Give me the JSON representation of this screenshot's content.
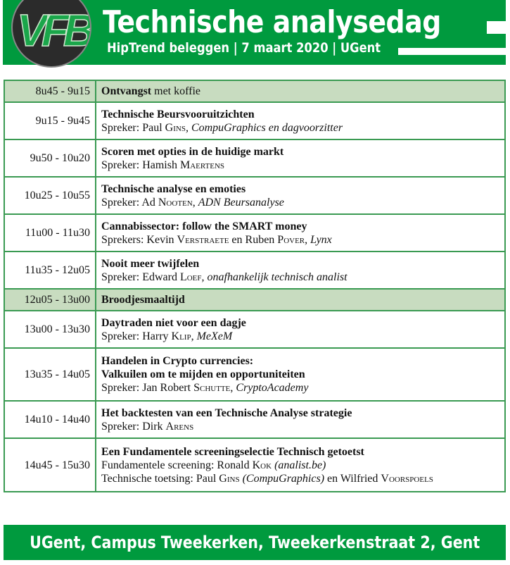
{
  "header": {
    "logo_text": "VFB",
    "title": "Technische analysedag",
    "subtitle": "HipTrend beleggen | 7 maart 2020 | UGent",
    "brand_color": "#009a3e"
  },
  "sessions": [
    {
      "time": "8u45 - 9u15",
      "highlight": true,
      "title": "Ontvangst",
      "title_suffix": " met koffie",
      "lines": []
    },
    {
      "time": "9u15 - 9u45",
      "title": "Technische Beursvooruitzichten",
      "lines": [
        [
          {
            "t": "Spreker: Paul "
          },
          {
            "t": "Gins",
            "s": "sc"
          },
          {
            "t": ", CompuGraphics en dagvoorzitter",
            "s": "it"
          }
        ]
      ]
    },
    {
      "time": "9u50 - 10u20",
      "title": "Scoren met opties in de huidige markt",
      "lines": [
        [
          {
            "t": "Spreker: Hamish "
          },
          {
            "t": "Maertens",
            "s": "sc"
          }
        ]
      ]
    },
    {
      "time": "10u25 - 10u55",
      "title": "Technische analyse en emoties",
      "lines": [
        [
          {
            "t": "Spreker: Ad "
          },
          {
            "t": "Nooten",
            "s": "sc"
          },
          {
            "t": ", "
          },
          {
            "t": "ADN Beursanalyse",
            "s": "it"
          }
        ]
      ]
    },
    {
      "time": "11u00 - 11u30",
      "title": "Cannabissector: follow the SMART money",
      "lines": [
        [
          {
            "t": "Sprekers: Kevin "
          },
          {
            "t": "Verstraete",
            "s": "sc"
          },
          {
            "t": " en Ruben "
          },
          {
            "t": "Pover",
            "s": "sc"
          },
          {
            "t": ", "
          },
          {
            "t": "Lynx",
            "s": "it"
          }
        ]
      ]
    },
    {
      "time": "11u35 - 12u05",
      "title": "Nooit meer twijfelen",
      "lines": [
        [
          {
            "t": "Spreker: Edward "
          },
          {
            "t": "Loef",
            "s": "sc"
          },
          {
            "t": ", "
          },
          {
            "t": "onafhankelijk technisch analist",
            "s": "it"
          }
        ]
      ]
    },
    {
      "time": "12u05 - 13u00",
      "highlight": true,
      "title": "Broodjesmaaltijd",
      "lines": []
    },
    {
      "time": "13u00 - 13u30",
      "title": "Daytraden niet voor een dagje",
      "lines": [
        [
          {
            "t": "Spreker: Harry "
          },
          {
            "t": "Klip",
            "s": "sc"
          },
          {
            "t": ", "
          },
          {
            "t": "MeXeM",
            "s": "it"
          }
        ]
      ]
    },
    {
      "time": "13u35 - 14u05",
      "title": "Handelen in Crypto currencies:",
      "title2": "Valkuilen om te mijden en opportuniteiten",
      "lines": [
        [
          {
            "t": "Spreker: Jan Robert "
          },
          {
            "t": "Schutte",
            "s": "sc"
          },
          {
            "t": ", "
          },
          {
            "t": "CryptoAcademy",
            "s": "it"
          }
        ]
      ]
    },
    {
      "time": "14u10 - 14u40",
      "title": "Het backtesten van een Technische Analyse strategie",
      "lines": [
        [
          {
            "t": "Spreker: Dirk "
          },
          {
            "t": "Arens",
            "s": "sc"
          }
        ]
      ]
    },
    {
      "time": "14u45 - 15u30",
      "title": "Een Fundamentele screeningselectie Technisch getoetst",
      "lines": [
        [
          {
            "t": "Fundamentele screening: Ronald "
          },
          {
            "t": "Kok",
            "s": "sc"
          },
          {
            "t": " "
          },
          {
            "t": "(analist.be)",
            "s": "it"
          }
        ],
        [
          {
            "t": "Technische toetsing: Paul "
          },
          {
            "t": "Gins",
            "s": "sc"
          },
          {
            "t": " "
          },
          {
            "t": "(CompuGraphics)",
            "s": "it"
          },
          {
            "t": " en Wilfried "
          },
          {
            "t": "Voorspoels",
            "s": "sc"
          }
        ]
      ]
    }
  ],
  "footer": {
    "location": "UGent, Campus Tweekerken, Tweekerkenstraat 2, Gent"
  }
}
